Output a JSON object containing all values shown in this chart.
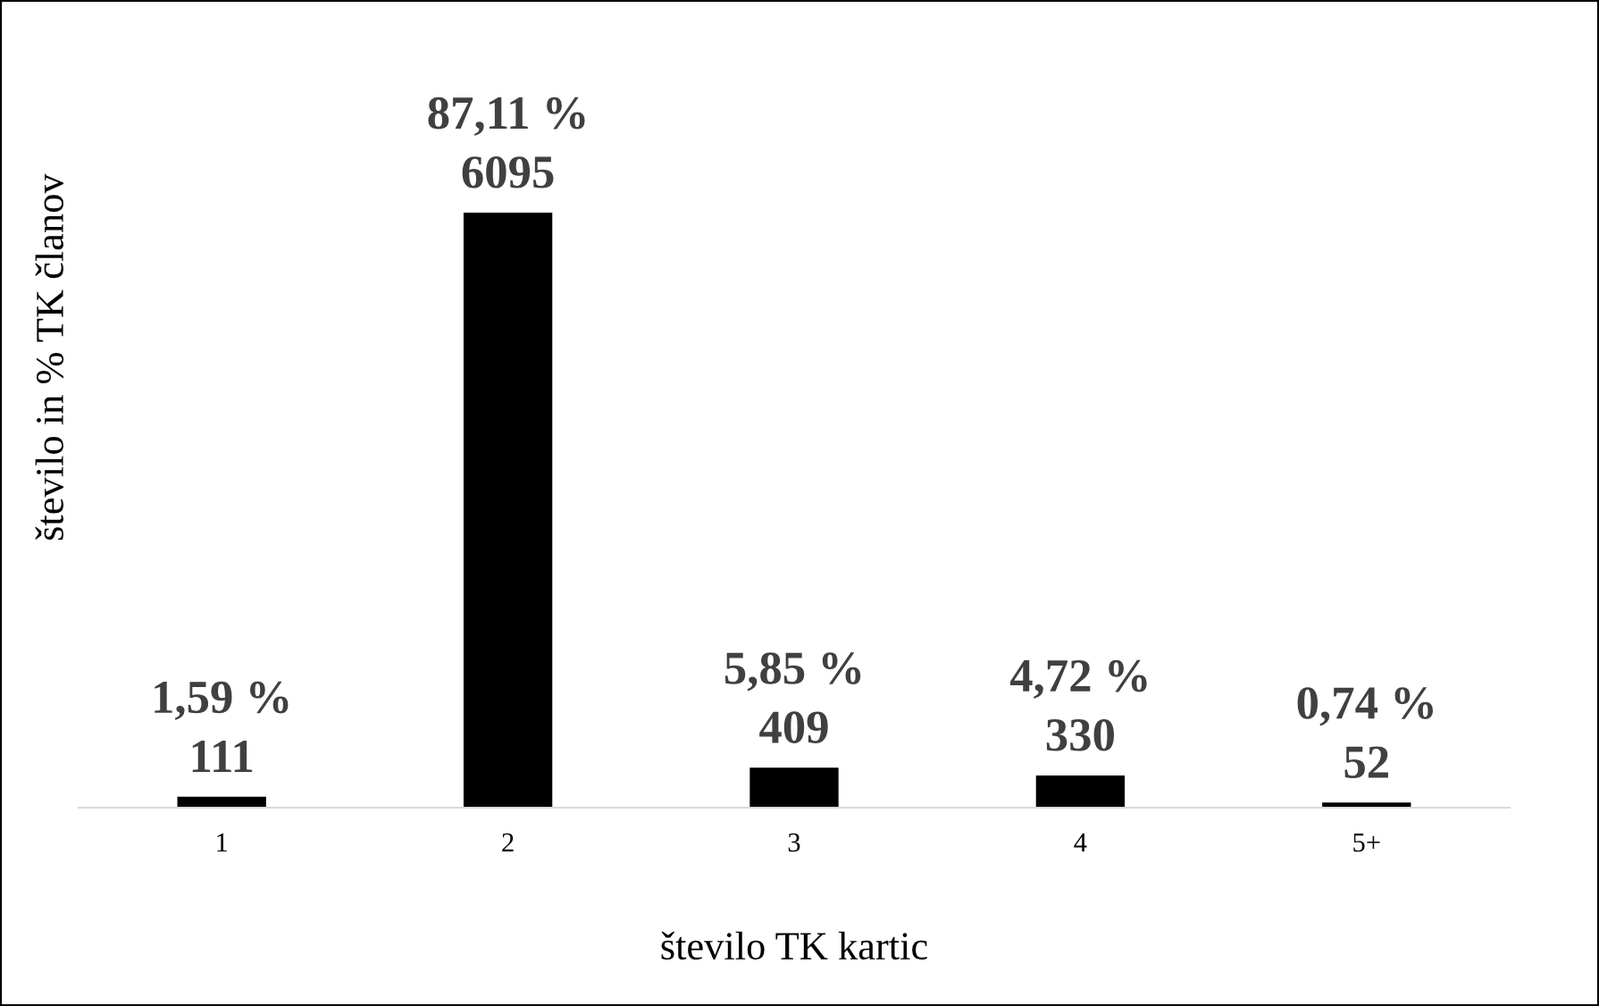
{
  "chart_data": {
    "type": "bar",
    "xlabel": "število TK kartic",
    "ylabel": "število in % TK članov",
    "categories": [
      "1",
      "2",
      "3",
      "4",
      "5+"
    ],
    "values": [
      111,
      6095,
      409,
      330,
      52
    ],
    "color": "#000000",
    "value_labels": [
      "1,59 %\n111",
      "87,11 %\n6095",
      "5,85 %\n409",
      "4,72 %\n330",
      "0,74 %\n52"
    ],
    "grid": false,
    "legend": false
  }
}
